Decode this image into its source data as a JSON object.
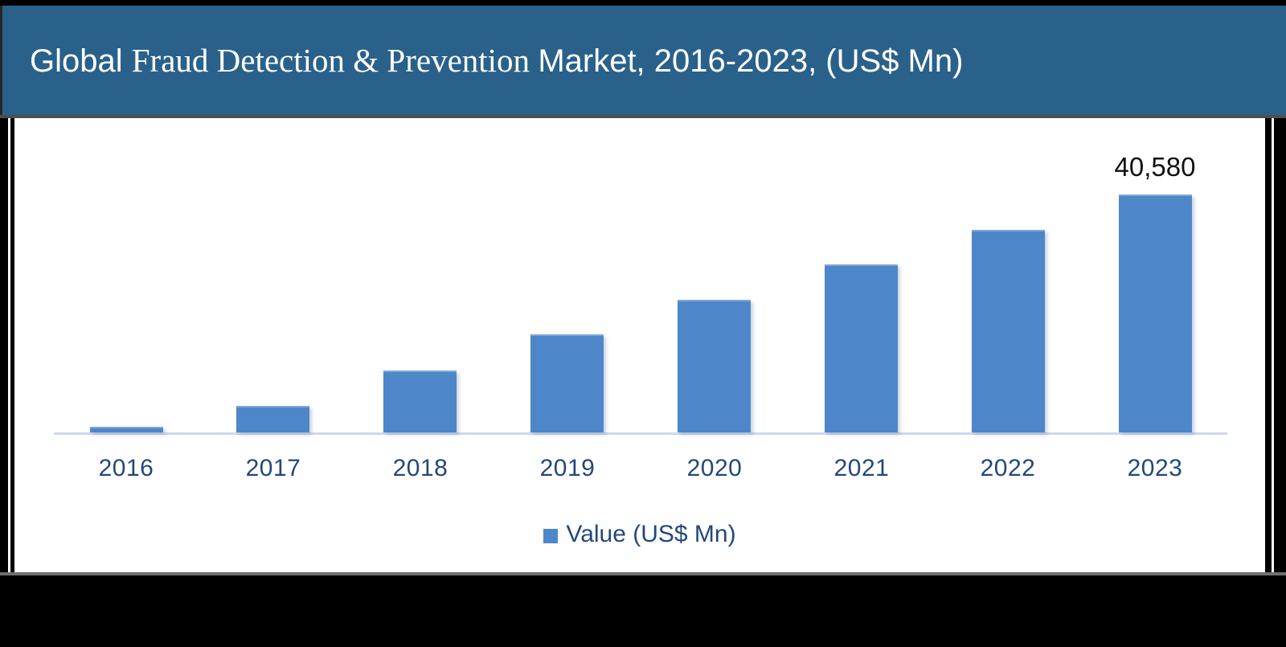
{
  "header": {
    "title_segments": {
      "part1": "Global",
      "part2": "Fraud Detection & Prevention",
      "part3": "Market, 2016-2023, (US$ Mn)"
    },
    "background_color": "#29618A",
    "text_color": "#FFFFFF"
  },
  "chart_data": {
    "type": "bar",
    "title": "Global Fraud Detection & Prevention Market, 2016-2023, (US$ Mn)",
    "categories": [
      "2016",
      "2017",
      "2018",
      "2019",
      "2020",
      "2021",
      "2022",
      "2023"
    ],
    "series": [
      {
        "name": "Value (US$ Mn)",
        "values": [
          1200,
          4800,
          10800,
          16900,
          22700,
          28700,
          34600,
          40580
        ]
      }
    ],
    "data_labels": [
      {
        "category": "2023",
        "text": "40,580",
        "value": 40580
      }
    ],
    "xlabel": "",
    "ylabel": "",
    "grid": false,
    "y_axis_visible": false,
    "legend_position": "bottom",
    "bar_color": "#4E87C9",
    "bar_top_edge_color": "#7FA5D8",
    "axis_line_color": "#CBD9EC",
    "tick_label_color": "#24477B",
    "data_label_color": "#111111"
  },
  "legend": {
    "swatch_color": "#4E87C9",
    "label": "Value (US$ Mn)"
  }
}
